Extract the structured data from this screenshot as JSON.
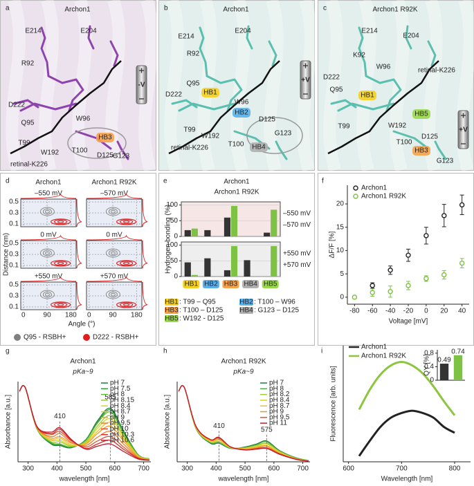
{
  "panels": {
    "a": {
      "letter": "a",
      "title": "Archon1",
      "bg": "#ece2ee",
      "stick": "#8e44ad",
      "labels": [
        {
          "text": "E214",
          "color": "#222222"
        },
        {
          "text": "E204",
          "color": "#222222"
        },
        {
          "text": "R92",
          "color": "#222222"
        },
        {
          "text": "D222",
          "color": "#222222"
        },
        {
          "text": "Q95",
          "color": "#222222"
        },
        {
          "text": "W96",
          "color": "#222222"
        },
        {
          "text": "T99",
          "color": "#222222"
        },
        {
          "text": "W192",
          "color": "#222222"
        },
        {
          "text": "HB3",
          "color": "#d9480f",
          "box": "#f7a24a"
        },
        {
          "text": "T100",
          "color": "#d9480f"
        },
        {
          "text": "D125",
          "color": "#d9480f"
        },
        {
          "text": "retinal-K226",
          "color": "#222222"
        },
        {
          "text": "G123",
          "color": "#222222"
        }
      ],
      "voltage": {
        "text": "-V",
        "color": "#d62020"
      }
    },
    "b": {
      "letter": "b",
      "title": "Archon1",
      "bg": "#e2efec",
      "stick": "#5bbfb0",
      "labels": [
        {
          "text": "E214",
          "color": "#222222"
        },
        {
          "text": "E204",
          "color": "#222222"
        },
        {
          "text": "R92",
          "color": "#222222"
        },
        {
          "text": "D222",
          "color": "#222222"
        },
        {
          "text": "Q95",
          "color": "#d62020"
        },
        {
          "text": "HB1",
          "color": "#d62020",
          "box": "#f5d020"
        },
        {
          "text": "W96",
          "color": "#1f4fa8"
        },
        {
          "text": "HB2",
          "color": "#1f4fa8",
          "box": "#5ab0ea"
        },
        {
          "text": "T99",
          "color": "#d62020"
        },
        {
          "text": "W192",
          "color": "#222222"
        },
        {
          "text": "T100",
          "color": "#1f4fa8"
        },
        {
          "text": "D125",
          "color": "#808080"
        },
        {
          "text": "G123",
          "color": "#808080"
        },
        {
          "text": "HB4",
          "color": "#555555",
          "box": "#b0b0b0"
        },
        {
          "text": "retinal-K226",
          "color": "#222222"
        }
      ],
      "voltage": {
        "text": "+V",
        "color": "#1f4fa8"
      }
    },
    "c": {
      "letter": "c",
      "title": "Archon1 R92K",
      "bg": "#e2efec",
      "stick": "#5bbfb0",
      "labels": [
        {
          "text": "E214",
          "color": "#222222"
        },
        {
          "text": "E204",
          "color": "#222222"
        },
        {
          "text": "K92",
          "color": "#222222"
        },
        {
          "text": "W96",
          "color": "#222222"
        },
        {
          "text": "retinal-K226",
          "color": "#222222"
        },
        {
          "text": "D222",
          "color": "#222222"
        },
        {
          "text": "Q95",
          "color": "#d62020"
        },
        {
          "text": "HB1",
          "color": "#d62020",
          "box": "#f5d020"
        },
        {
          "text": "HB5",
          "color": "#2f7d1a",
          "box": "#9ad84a"
        },
        {
          "text": "W192",
          "color": "#3f9a2a"
        },
        {
          "text": "T99",
          "color": "#d62020"
        },
        {
          "text": "D125",
          "color": "#d9480f"
        },
        {
          "text": "T100",
          "color": "#d9480f"
        },
        {
          "text": "HB3",
          "color": "#d9480f",
          "box": "#f7a24a"
        },
        {
          "text": "G123",
          "color": "#222222"
        }
      ],
      "voltage": {
        "text": "+V",
        "color": "#1f4fa8"
      }
    },
    "d": {
      "letter": "d",
      "titles": [
        "Archon1",
        "Archon1 R92K"
      ],
      "voltages": [
        "–550 mV",
        "–570 mV",
        "0 mV",
        "0 mV",
        "+550 mV",
        "+570 mV"
      ],
      "xlim": [
        -10,
        200
      ],
      "ylim": [
        0.05,
        0.55
      ],
      "yticks": [
        0.5,
        0.3,
        0.1
      ],
      "xticks": [
        0,
        90,
        180
      ],
      "ylabel": "Distance (nm)",
      "xlabel": "Angle (°)",
      "legend": [
        {
          "name": "Q95 - RSBH+",
          "color": "#808080"
        },
        {
          "name": "D222 - RSBH+",
          "color": "#e02020"
        }
      ]
    }
  },
  "chart_data": [
    {
      "type": "bar",
      "letter": "e",
      "title": "Archon1",
      "subtitle": "Archon1 R92K",
      "subtitle_color": "#7dc242",
      "ylabel": "Hydrogen bonding (%)",
      "ylim": [
        0,
        110
      ],
      "yticks": [
        0,
        50,
        100
      ],
      "bg": "#f7e6e6",
      "series": [
        {
          "name": "–550 mV",
          "color": "#333333",
          "values": [
            20,
            20,
            60,
            0,
            12
          ]
        },
        {
          "name": "–570 mV",
          "color": "#7dc242",
          "values": [
            25,
            0,
            97,
            0,
            85
          ]
        }
      ]
    },
    {
      "type": "bar",
      "ylim": [
        0,
        110
      ],
      "yticks": [
        0,
        50,
        100
      ],
      "bg": "#eeeeee",
      "categories": [
        "HB1",
        "HB2",
        "HB3",
        "HB4",
        "HB5"
      ],
      "category_colors": [
        "#f5d020",
        "#5ab0ea",
        "#f7a24a",
        "#b0b0b0",
        "#9ad84a"
      ],
      "series": [
        {
          "name": "+550 mV",
          "color": "#333333",
          "values": [
            45,
            58,
            20,
            52,
            0
          ]
        },
        {
          "name": "+570 mV",
          "color": "#7dc242",
          "values": [
            5,
            0,
            97,
            0,
            97
          ]
        }
      ],
      "hb_legend": [
        ": T99 – Q95",
        ": T100 – W96",
        ": T100 – D125",
        ": G123 – D125",
        ": W192 - D125"
      ]
    },
    {
      "type": "scatter",
      "letter": "f",
      "xlabel": "Voltage [mV]",
      "ylabel": "ΔF/F [%]",
      "x": [
        -80,
        -60,
        -40,
        -20,
        0,
        20,
        40
      ],
      "xlim": [
        -88,
        48
      ],
      "ylim": [
        -1.5,
        24
      ],
      "xticks": [
        -80,
        -60,
        -40,
        -20,
        0,
        20,
        40
      ],
      "yticks": [
        0,
        5,
        10,
        15,
        20
      ],
      "legend": "upper left",
      "series": [
        {
          "name": "Archon1",
          "color": "#222222",
          "values": [
            null,
            2.5,
            5.8,
            9,
            13.2,
            17.5,
            19.8
          ],
          "errors": [
            null,
            0.6,
            0.9,
            1.3,
            1.8,
            2.4,
            2.1
          ]
        },
        {
          "name": "Archon1 R92K",
          "color": "#7dc242",
          "values": [
            0,
            1,
            1.2,
            2.5,
            4,
            4.8,
            7.3
          ],
          "errors": [
            0.3,
            0.8,
            1.2,
            0.9,
            0.6,
            0.9,
            1
          ]
        }
      ]
    },
    {
      "type": "line",
      "letter": "g",
      "title": "Archon1",
      "subtitle": "pKa~9",
      "xlabel": "wavelength [nm]",
      "ylabel": "Absorbance [a.u.]",
      "x": [
        270,
        290,
        330,
        380,
        410,
        450,
        500,
        540,
        585,
        630,
        680,
        720
      ],
      "xlim": [
        265,
        725
      ],
      "ylim": [
        0,
        1.08
      ],
      "xticks": [
        300,
        400,
        500,
        600,
        700
      ],
      "legend": "upper right",
      "annotations": [
        {
          "x": 410,
          "text": "410"
        },
        {
          "x": 585,
          "text": "585"
        }
      ],
      "series": [
        {
          "name": "pH 7",
          "color": "#1a7a3a",
          "values": [
            0.95,
            1,
            0.45,
            0.24,
            0.22,
            0.19,
            0.3,
            0.55,
            0.72,
            0.42,
            0.1,
            0.04
          ]
        },
        {
          "name": "pH 7.5",
          "color": "#2e9e3e",
          "values": [
            0.95,
            1,
            0.45,
            0.25,
            0.23,
            0.2,
            0.29,
            0.53,
            0.7,
            0.41,
            0.1,
            0.04
          ]
        },
        {
          "name": "pH 8",
          "color": "#5cb82e",
          "values": [
            0.95,
            1,
            0.45,
            0.26,
            0.24,
            0.2,
            0.29,
            0.52,
            0.67,
            0.39,
            0.09,
            0.04
          ]
        },
        {
          "name": "pH 8.15",
          "color": "#9ccc2c",
          "values": [
            0.95,
            1,
            0.46,
            0.27,
            0.27,
            0.21,
            0.27,
            0.48,
            0.62,
            0.36,
            0.09,
            0.04
          ]
        },
        {
          "name": "pH 8.4",
          "color": "#d4d42a",
          "values": [
            0.95,
            1,
            0.46,
            0.29,
            0.29,
            0.22,
            0.26,
            0.45,
            0.58,
            0.34,
            0.08,
            0.03
          ]
        },
        {
          "name": "pH 8.7",
          "color": "#f0c030",
          "values": [
            0.95,
            1,
            0.46,
            0.3,
            0.32,
            0.23,
            0.25,
            0.41,
            0.53,
            0.31,
            0.08,
            0.03
          ]
        },
        {
          "name": "pH 9",
          "color": "#f0a030",
          "values": [
            0.95,
            1,
            0.47,
            0.32,
            0.34,
            0.25,
            0.24,
            0.38,
            0.48,
            0.28,
            0.07,
            0.03
          ]
        },
        {
          "name": "pH 9.5",
          "color": "#e88030",
          "values": [
            0.95,
            1,
            0.47,
            0.34,
            0.38,
            0.26,
            0.22,
            0.33,
            0.41,
            0.24,
            0.06,
            0.03
          ]
        },
        {
          "name": "pH 10",
          "color": "#e05030",
          "values": [
            0.95,
            1,
            0.47,
            0.37,
            0.41,
            0.28,
            0.2,
            0.28,
            0.34,
            0.2,
            0.05,
            0.02
          ]
        },
        {
          "name": "pH 10.3",
          "color": "#d03030",
          "values": [
            0.95,
            1,
            0.48,
            0.38,
            0.44,
            0.29,
            0.18,
            0.24,
            0.29,
            0.17,
            0.05,
            0.02
          ]
        },
        {
          "name": "pH 10.6",
          "color": "#c01a2a",
          "values": [
            0.95,
            1,
            0.48,
            0.4,
            0.46,
            0.3,
            0.17,
            0.21,
            0.24,
            0.14,
            0.04,
            0.02
          ]
        }
      ]
    },
    {
      "type": "line",
      "letter": "h",
      "title": "Archon1 R92K",
      "subtitle": "pKa~9",
      "xlabel": "wavelength [nm]",
      "ylabel": "Absorbance [a.u.]",
      "x": [
        270,
        290,
        330,
        380,
        410,
        450,
        500,
        540,
        575,
        620,
        680,
        720
      ],
      "xlim": [
        265,
        725
      ],
      "ylim": [
        0,
        1.08
      ],
      "xticks": [
        300,
        400,
        500,
        600,
        700
      ],
      "legend": "upper right",
      "annotations": [
        {
          "x": 410,
          "text": "410"
        },
        {
          "x": 575,
          "text": "575"
        }
      ],
      "series": [
        {
          "name": "pH 7",
          "color": "#1a7a3a",
          "values": [
            0.95,
            1,
            0.45,
            0.25,
            0.25,
            0.18,
            0.2,
            0.24,
            0.28,
            0.15,
            0.05,
            0.02
          ]
        },
        {
          "name": "pH 8",
          "color": "#4caf50",
          "values": [
            0.95,
            1,
            0.45,
            0.26,
            0.26,
            0.18,
            0.19,
            0.23,
            0.27,
            0.14,
            0.05,
            0.02
          ]
        },
        {
          "name": "pH 8.2",
          "color": "#9ccc2c",
          "values": [
            0.95,
            1,
            0.46,
            0.27,
            0.27,
            0.19,
            0.19,
            0.22,
            0.25,
            0.14,
            0.04,
            0.02
          ]
        },
        {
          "name": "pH 8.4",
          "color": "#d4d42a",
          "values": [
            0.95,
            1,
            0.46,
            0.27,
            0.29,
            0.19,
            0.18,
            0.21,
            0.24,
            0.13,
            0.04,
            0.02
          ]
        },
        {
          "name": "pH 8.7",
          "color": "#f0c030",
          "values": [
            0.95,
            1,
            0.47,
            0.28,
            0.3,
            0.19,
            0.18,
            0.2,
            0.22,
            0.12,
            0.04,
            0.01
          ]
        },
        {
          "name": "pH 9",
          "color": "#f09030",
          "values": [
            0.95,
            1,
            0.47,
            0.29,
            0.31,
            0.2,
            0.17,
            0.19,
            0.21,
            0.11,
            0.04,
            0.01
          ]
        },
        {
          "name": "pH 9.5",
          "color": "#e05030",
          "values": [
            0.95,
            1,
            0.48,
            0.3,
            0.32,
            0.2,
            0.16,
            0.18,
            0.19,
            0.11,
            0.03,
            0.01
          ]
        },
        {
          "name": "pH 11",
          "color": "#c01a2a",
          "values": [
            0.95,
            1,
            0.48,
            0.3,
            0.33,
            0.2,
            0.16,
            0.17,
            0.18,
            0.1,
            0.03,
            0.01
          ]
        }
      ]
    },
    {
      "type": "line",
      "letter": "i",
      "xlabel": "Wavelength [nm]",
      "ylabel": "Fluorescence [arb. units]",
      "x": [
        620,
        640,
        660,
        680,
        700,
        720,
        740,
        760,
        780,
        800
      ],
      "xlim": [
        590,
        830
      ],
      "ylim": [
        0,
        1
      ],
      "xticks": [
        600,
        700,
        800
      ],
      "legend": "upper left",
      "series": [
        {
          "name": "Archon1",
          "color": "#222222",
          "values": [
            0.05,
            0.18,
            0.3,
            0.38,
            0.42,
            0.44,
            0.42,
            0.38,
            0.3,
            0.25
          ]
        },
        {
          "name": "Archon1 R92K",
          "color": "#8cc63f",
          "values": [
            0.45,
            0.62,
            0.75,
            0.83,
            0.86,
            0.83,
            0.76,
            0.65,
            0.52,
            0.4
          ]
        }
      ]
    },
    {
      "type": "bar",
      "ylabel": "QY [%]",
      "ylim": [
        0,
        0.9
      ],
      "yticks": [
        0,
        0.4,
        0.8
      ],
      "values": [
        0.49,
        0.74
      ],
      "colors": [
        "#333333",
        "#7dc242"
      ]
    }
  ]
}
